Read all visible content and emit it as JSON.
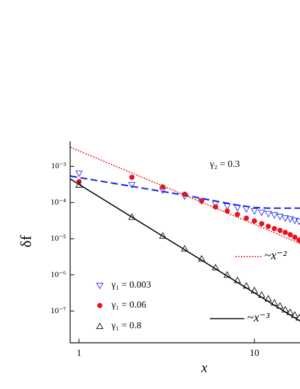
{
  "chart_data": {
    "type": "scatter",
    "x_label": "x",
    "y_label": "δf",
    "annotation": "γ₂ = 0.3",
    "log_x": true,
    "log_y": true,
    "xlim": [
      0.89,
      18.2
    ],
    "ylim": [
      1.33e-08,
      0.0049
    ],
    "xticks": [
      1,
      10
    ],
    "yticks": [
      {
        "value": 0.001,
        "label": "10⁻³"
      },
      {
        "value": 0.0001,
        "label": "10⁻⁴"
      },
      {
        "value": 1e-05,
        "label": "10⁻⁵"
      },
      {
        "value": 1e-06,
        "label": "10⁻⁶"
      },
      {
        "value": 1e-07,
        "label": "10⁻⁷"
      }
    ],
    "series": [
      {
        "name": "γ₁ = 0.003",
        "color": "#1c2fe0",
        "marker": "triangle-down",
        "x": [
          1,
          2,
          3,
          4,
          5,
          6,
          7,
          8,
          9,
          10,
          11,
          12,
          13,
          14,
          15,
          16,
          17,
          18
        ],
        "values": [
          0.00064,
          0.00031,
          0.00022,
          0.00015,
          0.00011,
          9.3e-05,
          7.9e-05,
          7.2e-05,
          6.6e-05,
          5.8e-05,
          5.3e-05,
          4.9e-05,
          4.5e-05,
          4.1e-05,
          3.7e-05,
          3.5e-05,
          3.2e-05,
          3e-05
        ]
      },
      {
        "name": "γ₁ = 0.06",
        "color": "#e8141c",
        "marker": "circle",
        "x": [
          1,
          2,
          3,
          4,
          5,
          6,
          7,
          8,
          9,
          10,
          11,
          12,
          13,
          14,
          15,
          16,
          17,
          18
        ],
        "values": [
          0.00038,
          0.0005,
          0.00027,
          0.00017,
          0.00011,
          7.6e-05,
          5.8e-05,
          4.7e-05,
          3.7e-05,
          3.1e-05,
          2.6e-05,
          2.2e-05,
          1.9e-05,
          1.7e-05,
          1.5e-05,
          1.3e-05,
          1.1e-05,
          9.2e-06
        ]
      },
      {
        "name": "γ₁ = 0.8",
        "color": "#000000",
        "marker": "triangle-up",
        "x": [
          1,
          2,
          3,
          4,
          5,
          6,
          7,
          8,
          9,
          10,
          11,
          12,
          13,
          14,
          15,
          16,
          17,
          18
        ],
        "values": [
          0.00031,
          4e-05,
          1.2e-05,
          5.3e-06,
          2.8e-06,
          1.6e-06,
          1e-06,
          7.1e-07,
          5e-07,
          3.7e-07,
          2.8e-07,
          2.2e-07,
          1.7e-07,
          1.4e-07,
          1.1e-07,
          9.3e-08,
          7.8e-08,
          6.6e-08
        ]
      },
      {
        "name": "~x⁻²",
        "color": "#e8141c",
        "marker": "line",
        "dash": "2,2",
        "x": [
          0.89,
          18.2
        ],
        "values": [
          0.0034,
          7.4e-06
        ]
      },
      {
        "name": "~x⁻³",
        "color": "#000000",
        "marker": "line",
        "dash": "none",
        "x": [
          0.89,
          18.2
        ],
        "values": [
          0.00045,
          5.3e-08
        ]
      },
      {
        "color": "#1c2fe0",
        "marker": "line",
        "dash": "10,5",
        "x": [
          0.89,
          2,
          4,
          6,
          8,
          10,
          12,
          18.2
        ],
        "values": [
          0.00054,
          0.00028,
          0.00016,
          0.00011,
          8.5e-05,
          7.3e-05,
          7e-05,
          7e-05
        ]
      }
    ]
  }
}
